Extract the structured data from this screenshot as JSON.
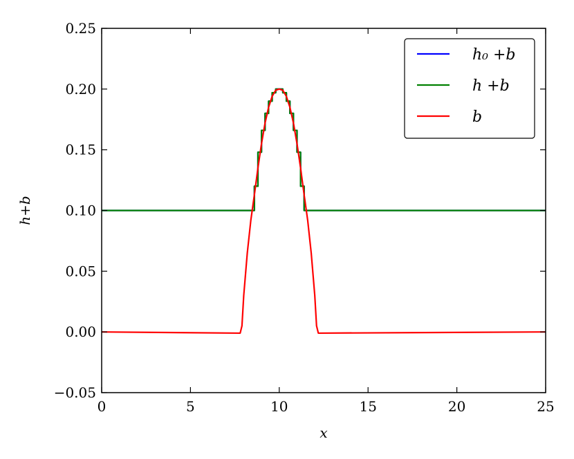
{
  "chart_data": {
    "type": "line",
    "title": "",
    "xlabel": "x",
    "ylabel": "h+b",
    "xlim": [
      0,
      25
    ],
    "ylim": [
      -0.05,
      0.25
    ],
    "x_ticks": [
      0,
      5,
      10,
      15,
      20,
      25
    ],
    "x_tick_labels": [
      "0",
      "5",
      "10",
      "15",
      "20",
      "25"
    ],
    "y_ticks": [
      -0.05,
      0.0,
      0.05,
      0.1,
      0.15,
      0.2,
      0.25
    ],
    "y_tick_labels": [
      "−0.05",
      "0.00",
      "0.05",
      "0.10",
      "0.15",
      "0.20",
      "0.25"
    ],
    "grid": false,
    "legend_position": "top-right",
    "series": [
      {
        "name": "h₀ +b",
        "color": "#0000ff",
        "x": [
          0,
          8.6,
          8.6,
          8.8,
          8.8,
          9.0,
          9.0,
          9.2,
          9.2,
          9.4,
          9.4,
          9.6,
          9.6,
          9.8,
          9.8,
          10.0,
          10.0,
          10.2,
          10.2,
          10.4,
          10.4,
          10.6,
          10.6,
          10.8,
          10.8,
          11.0,
          11.0,
          11.2,
          11.2,
          11.4,
          11.4,
          25
        ],
        "y": [
          0.1,
          0.1,
          0.12,
          0.12,
          0.148,
          0.148,
          0.166,
          0.166,
          0.18,
          0.18,
          0.19,
          0.19,
          0.197,
          0.197,
          0.2,
          0.2,
          0.2,
          0.2,
          0.197,
          0.197,
          0.19,
          0.19,
          0.18,
          0.18,
          0.166,
          0.166,
          0.148,
          0.148,
          0.12,
          0.12,
          0.1,
          0.1
        ]
      },
      {
        "name": "h +b",
        "color": "#008000",
        "x": [
          0,
          8.6,
          8.6,
          8.8,
          8.8,
          9.0,
          9.0,
          9.2,
          9.2,
          9.4,
          9.4,
          9.6,
          9.6,
          9.8,
          9.8,
          10.0,
          10.0,
          10.2,
          10.2,
          10.4,
          10.4,
          10.6,
          10.6,
          10.8,
          10.8,
          11.0,
          11.0,
          11.2,
          11.2,
          11.4,
          11.4,
          25
        ],
        "y": [
          0.1,
          0.1,
          0.12,
          0.12,
          0.148,
          0.148,
          0.166,
          0.166,
          0.18,
          0.18,
          0.19,
          0.19,
          0.197,
          0.197,
          0.2,
          0.2,
          0.2,
          0.2,
          0.197,
          0.197,
          0.19,
          0.19,
          0.18,
          0.18,
          0.166,
          0.166,
          0.148,
          0.148,
          0.12,
          0.12,
          0.1,
          0.1
        ]
      },
      {
        "name": "b",
        "color": "#ff0000",
        "x": [
          0,
          7.8,
          7.9,
          8.0,
          8.2,
          8.4,
          8.6,
          8.8,
          9.0,
          9.2,
          9.4,
          9.6,
          9.8,
          10.0,
          10.2,
          10.4,
          10.6,
          10.8,
          11.0,
          11.2,
          11.4,
          11.6,
          11.8,
          12.0,
          12.1,
          12.2,
          25
        ],
        "y": [
          0.0,
          -0.001,
          0.005,
          0.03,
          0.065,
          0.092,
          0.113,
          0.135,
          0.155,
          0.172,
          0.185,
          0.194,
          0.199,
          0.2,
          0.199,
          0.194,
          0.185,
          0.172,
          0.155,
          0.135,
          0.113,
          0.092,
          0.065,
          0.03,
          0.005,
          -0.001,
          0.0
        ]
      }
    ]
  }
}
